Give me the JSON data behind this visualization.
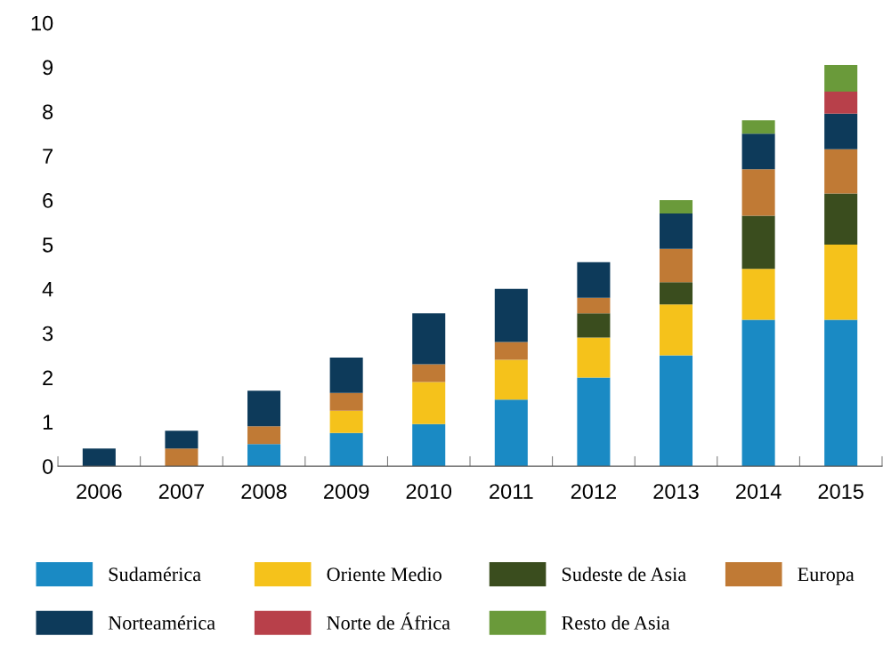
{
  "chart_data": {
    "type": "bar",
    "stacked": true,
    "categories": [
      "2006",
      "2007",
      "2008",
      "2009",
      "2010",
      "2011",
      "2012",
      "2013",
      "2014",
      "2015"
    ],
    "ylim": [
      0,
      10
    ],
    "yticks": [
      0,
      1,
      2,
      3,
      4,
      5,
      6,
      7,
      8,
      9,
      10
    ],
    "grid": false,
    "legend": "bottom",
    "series": [
      {
        "name": "Sudamérica",
        "color": "#1a8ac4",
        "values": [
          0,
          0,
          0.5,
          0.75,
          0.95,
          1.5,
          2.0,
          2.5,
          3.3,
          3.3
        ]
      },
      {
        "name": "Oriente Medio",
        "color": "#f5c21b",
        "values": [
          0,
          0,
          0,
          0.5,
          0.95,
          0.9,
          0.9,
          1.15,
          1.15,
          1.7
        ]
      },
      {
        "name": "Sudeste de Asia",
        "color": "#3a4d1e",
        "values": [
          0,
          0,
          0,
          0,
          0,
          0,
          0.55,
          0.5,
          1.2,
          1.15
        ]
      },
      {
        "name": "Europa",
        "color": "#c07a35",
        "values": [
          0,
          0.4,
          0.4,
          0.4,
          0.4,
          0.4,
          0.35,
          0.75,
          1.05,
          1.0
        ]
      },
      {
        "name": "Norteamérica",
        "color": "#0d3a5a",
        "values": [
          0.4,
          0.4,
          0.8,
          0.8,
          1.15,
          1.2,
          0.8,
          0.8,
          0.8,
          0.8
        ]
      },
      {
        "name": "Norte de África",
        "color": "#b8404a",
        "values": [
          0,
          0,
          0,
          0,
          0,
          0,
          0,
          0,
          0,
          0.5
        ]
      },
      {
        "name": "Resto de Asia",
        "color": "#6a9a3a",
        "values": [
          0,
          0,
          0,
          0,
          0,
          0,
          0,
          0.3,
          0.3,
          0.6
        ]
      }
    ]
  }
}
